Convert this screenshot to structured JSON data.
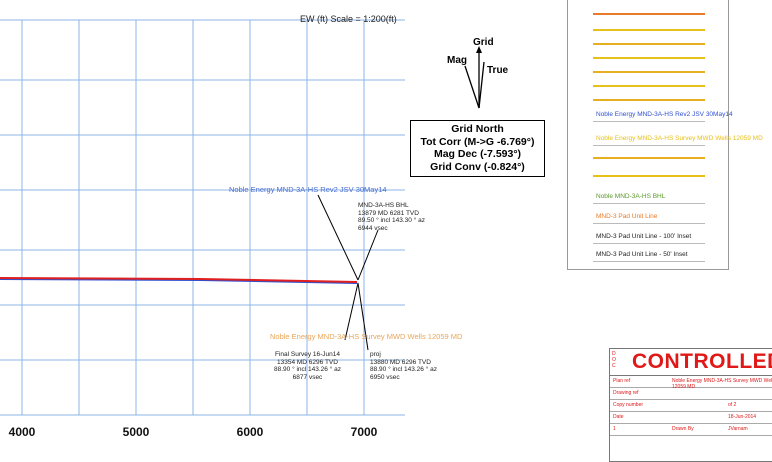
{
  "plot": {
    "scale_title": "EW (ft) Scale = 1:200(ft)",
    "x_ticks": [
      {
        "label": "4000",
        "value": 4000
      },
      {
        "label": "5000",
        "value": 5000
      },
      {
        "label": "6000",
        "value": 6000
      },
      {
        "label": "7000",
        "value": 7000
      }
    ],
    "colors": {
      "grid": "#8fb4ea",
      "well_red": "#e02020",
      "well_blue": "#3050d0"
    }
  },
  "north_arrow": {
    "grid_label": "Grid",
    "mag_label": "Mag",
    "true_label": "True",
    "lines": [
      "Grid North",
      "Tot Corr (M->G -6.769°)",
      "Mag Dec (-7.593°)",
      "Grid Conv (-0.824°)"
    ]
  },
  "annotations": {
    "plan_label": "Noble Energy MND-3A-HS Rev2 JSV 30May14",
    "bhl_block": [
      "MND-3A-HS BHL",
      "13879 MD 6281 TVD",
      "89.50 ° incl 143.30 ° az",
      "6944 vsec"
    ],
    "survey_label": "Noble Energy MND-3A-HS Survey MWD Wells 12059 MD",
    "final_block": [
      "Final Survey 16-Jun14",
      "13354 MD 6296 TVD",
      "88.90 ° incl 143.26 ° az",
      "6877 vsec"
    ],
    "proj_block": [
      "proj",
      "13880 MD 6296 TVD",
      "88.90 ° incl 143.26 ° az",
      "6950 vsec"
    ]
  },
  "legend": {
    "entries": [
      {
        "label": "",
        "color": "#e87a2a"
      },
      {
        "label": "",
        "color": "#e8c01a"
      },
      {
        "label": "",
        "color": "#e8b020"
      },
      {
        "label": "",
        "color": "#e8c01a"
      },
      {
        "label": "",
        "color": "#e8b020"
      },
      {
        "label": "",
        "color": "#e8c01a"
      },
      {
        "label": "",
        "color": "#e8b020"
      },
      {
        "label": "Noble Energy MND-3A-HS Rev2 JSV 30May14",
        "color": "#3050d0"
      },
      {
        "label": "Noble Energy MND-3A-HS Survey MWD Wells 12059 MD",
        "color": "#e8c01a"
      },
      {
        "label": "",
        "color": "#e8b020"
      },
      {
        "label": "",
        "color": "#e8c01a"
      },
      {
        "label": "Noble MND-3A-HS BHL",
        "color": "#5a9a2a"
      },
      {
        "label": "MND-3 Pad Unit Line",
        "color": "#e87a2a"
      },
      {
        "label": "MND-3 Pad Unit Line - 100' Inset",
        "color": "#222222"
      },
      {
        "label": "MND-3 Pad Unit Line - 50' Inset",
        "color": "#222222"
      }
    ]
  },
  "controlled": {
    "title": "CONTROLLED",
    "side_marks": [
      "D",
      "O",
      "C"
    ],
    "rows": [
      {
        "k": "Plan ref",
        "v": "Noble Energy MND-3A-HS Survey MWD Wells 12059 MD",
        "v2": ""
      },
      {
        "k": "Drawing ref",
        "v": "",
        "v2": ""
      },
      {
        "k": "Copy number",
        "v": "",
        "v2": "of 2"
      },
      {
        "k": "Date",
        "v": "",
        "v2": "18-Jun-2014"
      },
      {
        "k": "1",
        "v": "Drawn By",
        "v2": "JVarnam"
      }
    ]
  }
}
